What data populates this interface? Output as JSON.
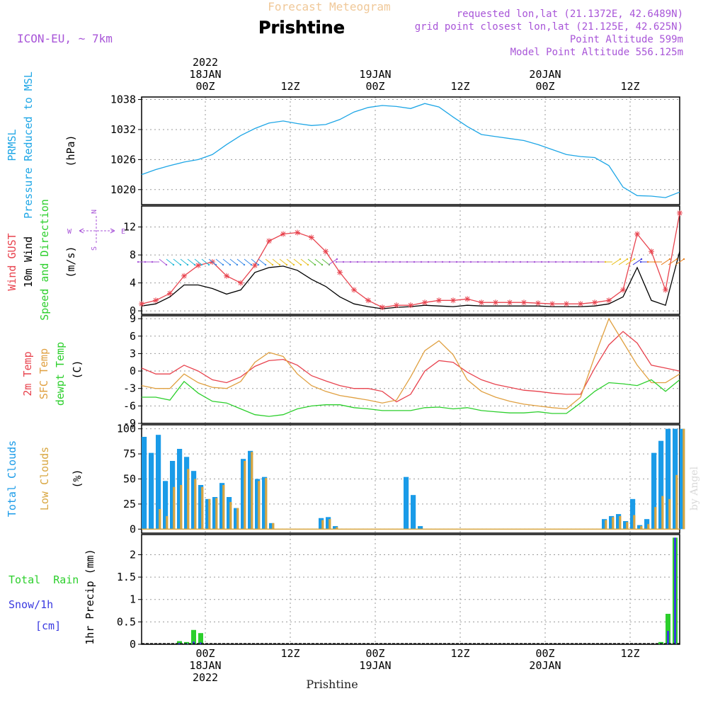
{
  "header": {
    "title_top": "Forecast Meteogram",
    "title_main": "Prishtine",
    "model": "ICON-EU, ~ 7km",
    "requested": "requested lon,lat (21.1372E, 42.6489N)",
    "grid_point": "grid point closest lon,lat (21.125E, 42.625N)",
    "point_altitude": "Point Altitude 599m",
    "model_altitude": "Model Point Altitude 556.125m",
    "credit": "by Angel",
    "footer_location": "Prishtine"
  },
  "colors": {
    "pressure": "#1ea6e6",
    "gust": "#e8434e",
    "wind": "#000000",
    "temp2m": "#e8434e",
    "sfc": "#e0a040",
    "dewpt": "#2ccf2c",
    "total_cloud": "#1a9be8",
    "low_cloud": "#d8a640",
    "rain": "#2ccf2c",
    "snow": "#3a3ae0",
    "purple": "#a855d8"
  },
  "time_axis": {
    "top": [
      {
        "t": 9,
        "lines": [
          "2022",
          "18JAN",
          "00Z"
        ]
      },
      {
        "t": 21,
        "lines": [
          "12Z"
        ]
      },
      {
        "t": 33,
        "lines": [
          "19JAN",
          "00Z"
        ]
      },
      {
        "t": 45,
        "lines": [
          "12Z"
        ]
      },
      {
        "t": 57,
        "lines": [
          "20JAN",
          "00Z"
        ]
      },
      {
        "t": 69,
        "lines": [
          "12Z"
        ]
      }
    ],
    "bottom": [
      {
        "t": 9,
        "lines": [
          "00Z",
          "18JAN",
          "2022"
        ]
      },
      {
        "t": 21,
        "lines": [
          "12Z"
        ]
      },
      {
        "t": 33,
        "lines": [
          "00Z",
          "19JAN"
        ]
      },
      {
        "t": 45,
        "lines": [
          "12Z"
        ]
      },
      {
        "t": 57,
        "lines": [
          "00Z",
          "20JAN"
        ]
      },
      {
        "t": 69,
        "lines": [
          "12Z"
        ]
      }
    ]
  },
  "chart_data": [
    {
      "type": "line",
      "panel": "pressure",
      "title_lines": [
        "PRMSL",
        "Pressure Reduced to MSL"
      ],
      "ylabel": "(hPa)",
      "ylim": [
        1017,
        1038.5
      ],
      "yticks": [
        1020,
        1026,
        1032,
        1038
      ],
      "x": [
        0,
        2,
        4,
        6,
        8,
        10,
        12,
        14,
        16,
        18,
        20,
        22,
        24,
        26,
        28,
        30,
        32,
        34,
        36,
        38,
        40,
        42,
        44,
        46,
        48,
        50,
        52,
        54,
        56,
        58,
        60,
        62,
        64,
        66,
        68,
        70,
        72,
        74,
        76
      ],
      "series": [
        {
          "values": [
            1023.0,
            1024.0,
            1024.8,
            1025.5,
            1026.0,
            1027.0,
            1029.0,
            1030.8,
            1032.2,
            1033.3,
            1033.7,
            1033.2,
            1032.8,
            1033.0,
            1034.0,
            1035.5,
            1036.4,
            1036.8,
            1036.6,
            1036.2,
            1037.2,
            1036.5,
            1034.5,
            1032.6,
            1031.0,
            1030.6,
            1030.2,
            1029.8,
            1029.0,
            1028.0,
            1027.0,
            1026.6,
            1026.4,
            1024.8,
            1020.5,
            1018.8,
            1018.7,
            1018.4,
            1019.5
          ]
        }
      ]
    },
    {
      "type": "line",
      "panel": "wind",
      "title_lines": [
        "Wind GUST",
        "10m Wind",
        "Speed and Direction"
      ],
      "ylabel": "(m/s)",
      "compass": {
        "n": "N",
        "s": "S",
        "w": "W",
        "e": "E"
      },
      "ylim": [
        -0.5,
        15
      ],
      "yticks": [
        0,
        4,
        8,
        12
      ],
      "x": [
        0,
        2,
        4,
        6,
        8,
        10,
        12,
        14,
        16,
        18,
        20,
        22,
        24,
        26,
        28,
        30,
        32,
        34,
        36,
        38,
        40,
        42,
        44,
        46,
        48,
        50,
        52,
        54,
        56,
        58,
        60,
        62,
        64,
        66,
        68,
        70,
        72,
        74,
        76
      ],
      "series": [
        {
          "name": "Wind GUST",
          "values": [
            1.0,
            1.5,
            2.5,
            5.0,
            6.5,
            7.0,
            5.0,
            4.0,
            6.5,
            10.0,
            11.0,
            11.2,
            10.5,
            8.5,
            5.5,
            3.0,
            1.5,
            0.5,
            0.8,
            0.8,
            1.2,
            1.5,
            1.5,
            1.7,
            1.2,
            1.2,
            1.2,
            1.2,
            1.1,
            1.0,
            1.0,
            1.0,
            1.2,
            1.5,
            3.0,
            11.0,
            8.5,
            3.0,
            14.0
          ]
        },
        {
          "name": "10m Wind",
          "values": [
            0.7,
            1.0,
            2.0,
            3.7,
            3.7,
            3.2,
            2.4,
            3.0,
            5.5,
            6.2,
            6.4,
            5.8,
            4.5,
            3.5,
            2.0,
            1.0,
            0.6,
            0.3,
            0.5,
            0.6,
            0.8,
            0.7,
            0.6,
            0.8,
            0.7,
            0.7,
            0.7,
            0.7,
            0.7,
            0.6,
            0.6,
            0.6,
            0.7,
            1.0,
            2.0,
            6.2,
            1.5,
            0.8,
            8.5
          ]
        }
      ]
    },
    {
      "type": "line",
      "panel": "temperature",
      "title_lines": [
        "2m Temp",
        "SFC Temp",
        "dewpt Temp"
      ],
      "ylabel": "(C)",
      "ylim": [
        -9,
        9.5
      ],
      "yticks": [
        -9,
        -6,
        -3,
        0,
        3,
        6,
        9
      ],
      "x": [
        0,
        2,
        4,
        6,
        8,
        10,
        12,
        14,
        16,
        18,
        20,
        22,
        24,
        26,
        28,
        30,
        32,
        34,
        36,
        38,
        40,
        42,
        44,
        46,
        48,
        50,
        52,
        54,
        56,
        58,
        60,
        62,
        64,
        66,
        68,
        70,
        72,
        74,
        76
      ],
      "series": [
        {
          "name": "2m Temp",
          "values": [
            0.5,
            -0.5,
            -0.5,
            1.0,
            0.0,
            -1.5,
            -2.0,
            -1.0,
            0.8,
            1.8,
            2.0,
            1.0,
            -0.8,
            -1.7,
            -2.5,
            -3.0,
            -3.0,
            -3.5,
            -5.3,
            -4.0,
            0.0,
            1.8,
            1.5,
            -0.2,
            -1.5,
            -2.3,
            -2.8,
            -3.3,
            -3.5,
            -3.8,
            -4.0,
            -4.0,
            0.5,
            4.5,
            6.8,
            4.8,
            1.0,
            0.5,
            0.0
          ]
        },
        {
          "name": "SFC Temp",
          "values": [
            -2.5,
            -3.0,
            -3.0,
            -0.5,
            -2.0,
            -2.8,
            -3.0,
            -1.8,
            1.5,
            3.2,
            2.5,
            -0.5,
            -2.5,
            -3.5,
            -4.2,
            -4.6,
            -5.0,
            -5.5,
            -5.0,
            -1.0,
            3.5,
            5.2,
            2.8,
            -1.5,
            -3.5,
            -4.5,
            -5.2,
            -5.7,
            -6.0,
            -6.3,
            -6.5,
            -4.5,
            2.5,
            9.0,
            5.0,
            1.0,
            -2.0,
            -2.0,
            -0.5
          ]
        },
        {
          "name": "dewpt Temp",
          "values": [
            -4.5,
            -4.5,
            -5.0,
            -1.8,
            -3.8,
            -5.2,
            -5.5,
            -6.5,
            -7.5,
            -7.8,
            -7.5,
            -6.5,
            -6.0,
            -5.8,
            -5.8,
            -6.3,
            -6.5,
            -6.8,
            -6.8,
            -6.8,
            -6.3,
            -6.2,
            -6.5,
            -6.3,
            -6.8,
            -7.0,
            -7.2,
            -7.2,
            -7.0,
            -7.3,
            -7.3,
            -5.5,
            -3.5,
            -2.0,
            -2.2,
            -2.5,
            -1.5,
            -3.5,
            -1.5
          ]
        }
      ]
    },
    {
      "type": "bar",
      "panel": "clouds",
      "title_lines": [
        "Total Clouds",
        "Low Clouds"
      ],
      "ylabel": "(%)",
      "ylim": [
        -4,
        104
      ],
      "yticks": [
        0,
        25,
        50,
        75,
        100
      ],
      "x": [
        0,
        1,
        2,
        3,
        4,
        5,
        6,
        7,
        8,
        9,
        10,
        11,
        12,
        13,
        14,
        15,
        16,
        17,
        18,
        19,
        20,
        21,
        22,
        23,
        24,
        25,
        26,
        27,
        28,
        29,
        30,
        31,
        32,
        33,
        34,
        35,
        36,
        37,
        38,
        39,
        40,
        41,
        42,
        43,
        44,
        45,
        46,
        47,
        48,
        49,
        50,
        51,
        52,
        53,
        54,
        55,
        56,
        57,
        58,
        59,
        60,
        61,
        62,
        63,
        64,
        65,
        66,
        67,
        68,
        69,
        70,
        71,
        72,
        73,
        74,
        75,
        76
      ],
      "series": [
        {
          "name": "Total Clouds",
          "values": [
            92,
            76,
            94,
            48,
            68,
            80,
            72,
            58,
            44,
            30,
            32,
            46,
            32,
            21,
            70,
            78,
            50,
            52,
            6,
            0,
            0,
            0,
            0,
            0,
            0,
            11,
            12,
            3,
            0,
            0,
            0,
            0,
            0,
            0,
            0,
            0,
            0,
            52,
            34,
            3,
            0,
            0,
            0,
            0,
            0,
            0,
            0,
            0,
            0,
            0,
            0,
            0,
            0,
            0,
            0,
            0,
            0,
            0,
            0,
            0,
            0,
            0,
            0,
            0,
            0,
            10,
            13,
            15,
            8,
            30,
            4,
            10,
            76,
            88,
            100,
            100,
            100
          ]
        },
        {
          "name": "Low Clouds",
          "values": [
            0,
            0,
            20,
            13,
            42,
            44,
            60,
            50,
            42,
            30,
            31,
            44,
            27,
            21,
            68,
            77,
            48,
            51,
            6,
            0,
            0,
            0,
            0,
            0,
            0,
            9,
            10,
            2,
            0,
            0,
            0,
            0,
            0,
            0,
            0,
            0,
            0,
            0,
            0,
            0,
            0,
            0,
            0,
            0,
            0,
            0,
            0,
            0,
            0,
            0,
            0,
            0,
            0,
            0,
            0,
            0,
            0,
            0,
            0,
            0,
            0,
            0,
            0,
            0,
            0,
            9,
            12,
            13,
            7,
            14,
            3,
            5,
            22,
            33,
            30,
            54,
            100
          ]
        }
      ]
    },
    {
      "type": "bar",
      "panel": "precip",
      "ylabel": "1hr Precip (mm)",
      "legend_lines": [
        "Total  Rain",
        "Snow/1h",
        "[cm]"
      ],
      "ylim": [
        0,
        2.45
      ],
      "yticks": [
        0,
        0.5,
        1,
        1.5,
        2
      ],
      "ytick_labels": [
        "0",
        "0.5",
        "1",
        "1.5",
        "2"
      ],
      "x": [
        5,
        6,
        7,
        8,
        73,
        74,
        75
      ],
      "series": [
        {
          "name": "Total Rain",
          "values": [
            0.07,
            0.05,
            0.32,
            0.25,
            0.05,
            0.68,
            2.38
          ]
        },
        {
          "name": "Snow/1h",
          "values": [
            0.03,
            0.02,
            0.06,
            0.04,
            0.01,
            0.3,
            2.38
          ]
        }
      ]
    }
  ]
}
